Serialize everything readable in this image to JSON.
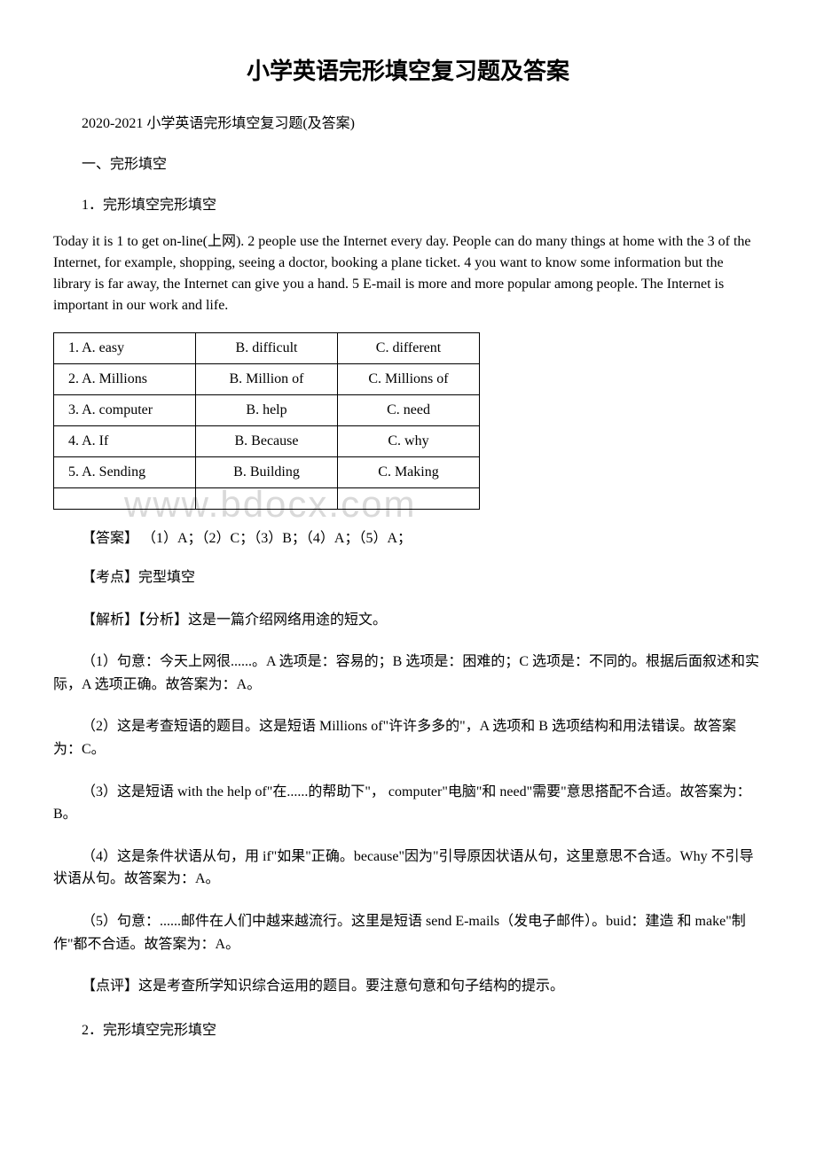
{
  "title": "小学英语完形填空复习题及答案",
  "subtitle": "2020-2021 小学英语完形填空复习题(及答案)",
  "sectionHeading": "一、完形填空",
  "q1": {
    "heading": "1．完形填空完形填空",
    "passage": "Today it is 1 to get on-line(上网). 2 people use the Internet every day. People can do many things at home with the 3 of the Internet, for example, shopping, seeing a doctor, booking a plane ticket. 4 you want to know some information but the library is far away, the Internet can give you a hand. 5 E-mail is more and more popular among people. The Internet is important in our work and life.",
    "options": [
      {
        "num": "1.",
        "a": "A. easy",
        "b": "B. difficult",
        "c": "C. different"
      },
      {
        "num": "2.",
        "a": "A. Millions",
        "b": "B. Million of",
        "c": "C. Millions of"
      },
      {
        "num": "3.",
        "a": "A. computer",
        "b": "B. help",
        "c": "C. need"
      },
      {
        "num": "4.",
        "a": "A. If",
        "b": "B. Because",
        "c": "C. why"
      },
      {
        "num": "5.",
        "a": "A. Sending",
        "b": "B. Building",
        "c": "C. Making"
      }
    ],
    "answer": "【答案】 （1）A；（2）C；（3）B；（4）A；（5）A；",
    "kaodian": "【考点】完型填空",
    "jiexi": "【解析】【分析】这是一篇介绍网络用途的短文。",
    "a1": "（1）句意：今天上网很......。A 选项是：容易的；B 选项是：困难的；C 选项是：不同的。根据后面叙述和实际，A 选项正确。故答案为：A。",
    "a2": "（2）这是考查短语的题目。这是短语 Millions of\"许许多多的\"，A 选项和 B 选项结构和用法错误。故答案为：C。",
    "a3": "（3）这是短语 with the help of\"在......的帮助下\"， computer\"电脑\"和 need\"需要\"意思搭配不合适。故答案为：B。",
    "a4": "（4）这是条件状语从句，用 if\"如果\"正确。because\"因为\"引导原因状语从句，这里意思不合适。Why 不引导状语从句。故答案为：A。",
    "a5": "（5）句意：......邮件在人们中越来越流行。这里是短语 send E-mails（发电子邮件）。buid：建造 和 make\"制作\"都不合适。故答案为：A。",
    "dianping": "【点评】这是考查所学知识综合运用的题目。要注意句意和句子结构的提示。"
  },
  "q2": {
    "heading": "2．完形填空完形填空"
  },
  "watermark": "www.bdocx.com"
}
